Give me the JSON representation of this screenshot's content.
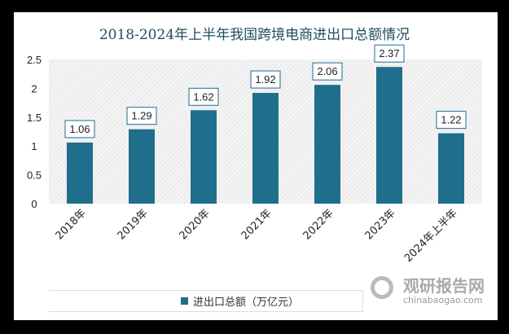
{
  "chart_data": {
    "type": "bar",
    "title": "2018-2024年上半年我国跨境电商进出口总额情况",
    "categories": [
      "2018年",
      "2019年",
      "2020年",
      "2021年",
      "2022年",
      "2023年",
      "2024年上半年"
    ],
    "series": [
      {
        "name": "进出口总额（万亿元）",
        "values": [
          1.06,
          1.29,
          1.62,
          1.92,
          2.06,
          2.37,
          1.22
        ]
      }
    ],
    "data_labels": [
      "1.06",
      "1.29",
      "1.62",
      "1.92",
      "2.06",
      "2.37",
      "1.22"
    ],
    "yticks": [
      "0",
      "0.5",
      "1",
      "1.5",
      "2",
      "2.5"
    ],
    "ylim": [
      0,
      2.5
    ],
    "legend": "bottom",
    "bar_color": "#1f6e8c"
  },
  "watermark": {
    "cn": "观研报告网",
    "en": "chinabaogao.com"
  }
}
